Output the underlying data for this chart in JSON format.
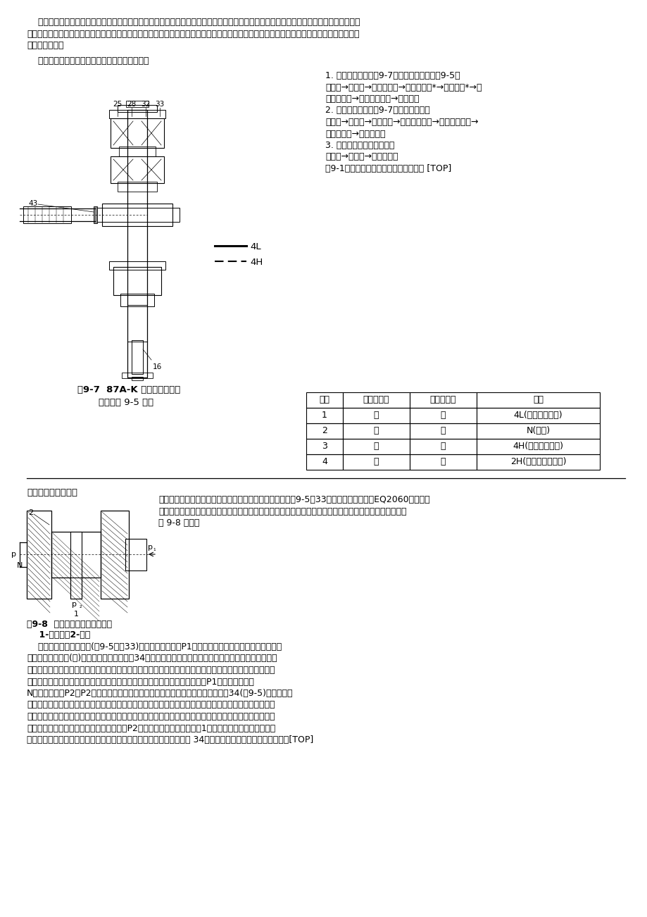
{
  "page_width": 9.2,
  "page_height": 13.02,
  "bg_color": "#ffffff",
  "lm": 38,
  "rm": 888,
  "body_fs": 9.0,
  "lh": 16.5,
  "para1_lines": [
    "    惯性同步器仅用于高速档时后轮驱动的接合，低速档时同步器断开后轮由高低档接合套传递动力。因此允许车辆行驶中实施高速两轮或高速",
    "四轮驱动工况的变换。由于高低档是采用接合套变换，因此必须在车辆完全静止时进行。否则，会产生强烈套合器冲击及噪声，甚至损坏有关另",
    "件，换档困难。"
  ],
  "para2": "    分动器两轮或四轮驱动时扭矩的传递路线如下：",
  "right_text": [
    "1. 四轮低速时（见图9-7中粗线所示标号同图9-5）",
    "输入轴→套合器→低速档齿轮→中间齿轮组*→前输出轴*→四",
    "轮驱动齿轮→惯性式同步器→后输出轴",
    "2. 四轮高速时（见图9-7中粗虚线所示）",
    "输出轴→套合器→后输出轴→惯性式同步器→四轮驱动齿轮→",
    "中间轴齿轮→前输出轴。",
    "3. 两轮驱动（只有高速档）",
    "输入轴→套合器→后输出轴。",
    "表9-1：结合套和同步器配合的四种工况 [TOP]"
  ],
  "fig97_cap1": "图9-7  87A-K 分动器传动路线",
  "fig97_cap2": "（图注与 9-5 同）",
  "legend_4L": "4L",
  "legend_4H": "4H",
  "table_headers": [
    "情况",
    "接合套位置",
    "同步器位置",
    "档位"
  ],
  "table_rows": [
    [
      "1",
      "前",
      "后",
      "4L(四轮低速驱动)"
    ],
    [
      "2",
      "中",
      "后",
      "N(空档)"
    ],
    [
      "3",
      "后",
      "后",
      "4H(四轮高速驱动)"
    ],
    [
      "4",
      "后",
      "前",
      "2H(两轮高速档驱动)"
    ]
  ],
  "sec5_title": "五、分动器的同步器",
  "sync_p1": [
    "同步器为惯性锁销式。它是惯性同步器的一种，其结构如图9-5中33所示，其结构类同于EQ2060变速器的",
    "同步器。主要区别在于它只有一个锥环和一个锥盘，只有向后单向同步作用，向前为分离状态。其工作原理",
    "图 9-8 所示。"
  ],
  "sync_p2": [
    "    同步过程为：当接合套(图9-5中，33)受到拨叉轴向推力P1作用时，通过定位销，推动接合套右侧",
    "的摩擦锥环，向后(右)移动，使这与摩擦锥盘34接触。具有转速差的摩擦锥环与摩擦锥盘一经接触，由于",
    "摩擦作用，锥环连同锁销相对于接合套转过一个角度，锁销与接合套相应销孔产生相对偏移而不同心，致使",
    "锁销锥面与接合套锁孔锁止锥面接触，这时驾驶员通过拨叉纵向施加的轴向力P1产生一个正压力",
    "N及其径向分力P2，P2便形成了一个力图拨动锁销顺时方向旋转的力矩。摩擦锥盘34(图9-5)加速，接合",
    "套及其有关机件减速，便产生一个与旋转方向相同的惯性力矩，此惯性力矩，通过摩擦锥面以及摩擦力矩的",
    "形式传递到锁销上，阻止接合套相对锁销后移，从而防止了在同步之前接合套与齿圈进入啮合，引起冲击。",
    "力矩消失，接合套作用在锁销倒角上的切向P2，才能拨动锁销使摩擦锥环1，摩擦锥盘和相应的齿圈通过",
    "接合套的相应孔对中，接合套才能沿锁销移动，从而与待啮合的摩擦盘 34上齿圈啮合，完成无冲击换档过程。[TOP]"
  ],
  "fig98_cap1": "图9-8  锁销式同步器的工作原理",
  "fig98_cap2": "    1-接合套；2-锁销"
}
